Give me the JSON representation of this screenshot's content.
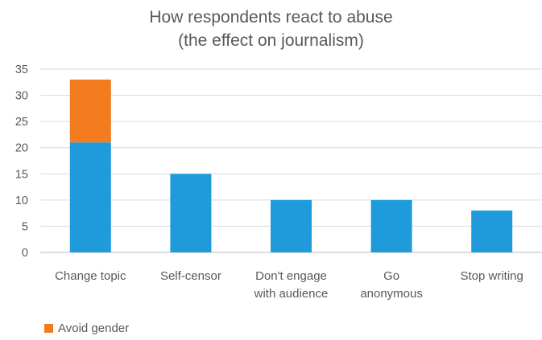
{
  "chart_data": {
    "type": "bar",
    "stacked": true,
    "title_lines": [
      "How respondents react to abuse",
      "(the effect on journalism)"
    ],
    "xlabel": "",
    "ylabel": "",
    "categories": [
      [
        "Change topic"
      ],
      [
        "Self-censor"
      ],
      [
        "Don't engage",
        "with audience"
      ],
      [
        "Go",
        "anonymous"
      ],
      [
        "Stop writing"
      ]
    ],
    "series": [
      {
        "values": [
          21,
          15,
          10,
          10,
          8
        ],
        "color": "#1f9bdb"
      },
      {
        "name": "Avoid gender",
        "values": [
          12,
          0,
          0,
          0,
          0
        ],
        "color": "#f47c20"
      }
    ],
    "ylim": [
      0,
      35
    ],
    "yticks": [
      0,
      5,
      10,
      15,
      20,
      25,
      30,
      35
    ],
    "grid": true,
    "legend_position": "bottom-left"
  }
}
